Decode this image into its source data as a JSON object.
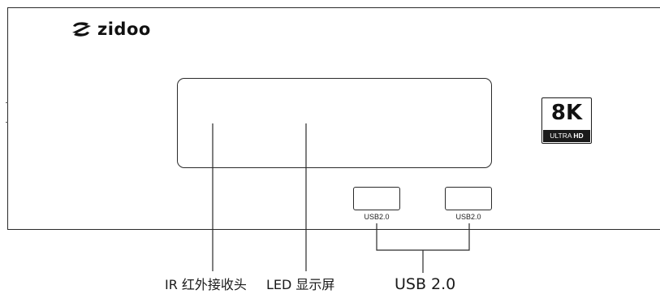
{
  "device": {
    "brand": {
      "icon": "zidoo-logo-icon",
      "name": "zidoo"
    },
    "badge": {
      "main": "8K",
      "sub_prefix": "ULTRA ",
      "sub_bold": "HD"
    },
    "ports": [
      {
        "label": "USB2.0"
      },
      {
        "label": "USB2.0"
      }
    ]
  },
  "callouts": {
    "ir_receiver": "IR 红外接收头",
    "led_display": "LED 显示屏",
    "usb": "USB 2.0"
  },
  "colors": {
    "line": "#2a2a2a",
    "badge_bar": "#1a1a1a",
    "background": "#ffffff"
  }
}
